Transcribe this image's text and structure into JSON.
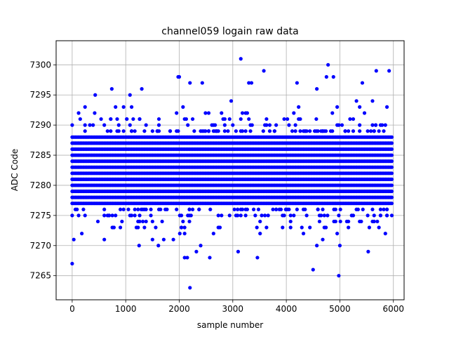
{
  "chart_data": {
    "type": "scatter",
    "title": "channel059 logain raw data",
    "xlabel": "sample number",
    "ylabel": "ADC Code",
    "xlim": [
      -300,
      6200
    ],
    "ylim": [
      7261,
      7304
    ],
    "xticks": [
      0,
      1000,
      2000,
      3000,
      4000,
      5000,
      6000
    ],
    "yticks": [
      7265,
      7270,
      7275,
      7280,
      7285,
      7290,
      7295,
      7300
    ],
    "grid": true,
    "marker_color": "#0000ff",
    "sample_count": 6000,
    "sample_step": 30,
    "core_range": [
      7277,
      7288
    ],
    "outliers": [
      {
        "x": 0,
        "y": 7267
      },
      {
        "x": 2200,
        "y": 7263
      },
      {
        "x": 3150,
        "y": 7301
      },
      {
        "x": 3580,
        "y": 7299
      },
      {
        "x": 4500,
        "y": 7266
      },
      {
        "x": 4780,
        "y": 7300
      },
      {
        "x": 4980,
        "y": 7265
      },
      {
        "x": 5680,
        "y": 7299
      },
      {
        "x": 5920,
        "y": 7299
      },
      {
        "x": 1980,
        "y": 7298
      },
      {
        "x": 2000,
        "y": 7298
      },
      {
        "x": 2200,
        "y": 7297
      },
      {
        "x": 2430,
        "y": 7297
      },
      {
        "x": 3350,
        "y": 7297
      },
      {
        "x": 4570,
        "y": 7296
      },
      {
        "x": 3300,
        "y": 7297
      },
      {
        "x": 4880,
        "y": 7298
      },
      {
        "x": 5420,
        "y": 7297
      },
      {
        "x": 4750,
        "y": 7298
      },
      {
        "x": 4200,
        "y": 7297
      },
      {
        "x": 740,
        "y": 7296
      },
      {
        "x": 1300,
        "y": 7296
      },
      {
        "x": 1080,
        "y": 7295
      },
      {
        "x": 430,
        "y": 7295
      },
      {
        "x": 2150,
        "y": 7268
      },
      {
        "x": 2570,
        "y": 7268
      },
      {
        "x": 3460,
        "y": 7268
      },
      {
        "x": 2100,
        "y": 7268
      },
      {
        "x": 5530,
        "y": 7269
      },
      {
        "x": 1250,
        "y": 7270
      },
      {
        "x": 1610,
        "y": 7270
      },
      {
        "x": 3100,
        "y": 7269
      },
      {
        "x": 2320,
        "y": 7269
      },
      {
        "x": 4570,
        "y": 7270
      },
      {
        "x": 5000,
        "y": 7270
      }
    ]
  }
}
